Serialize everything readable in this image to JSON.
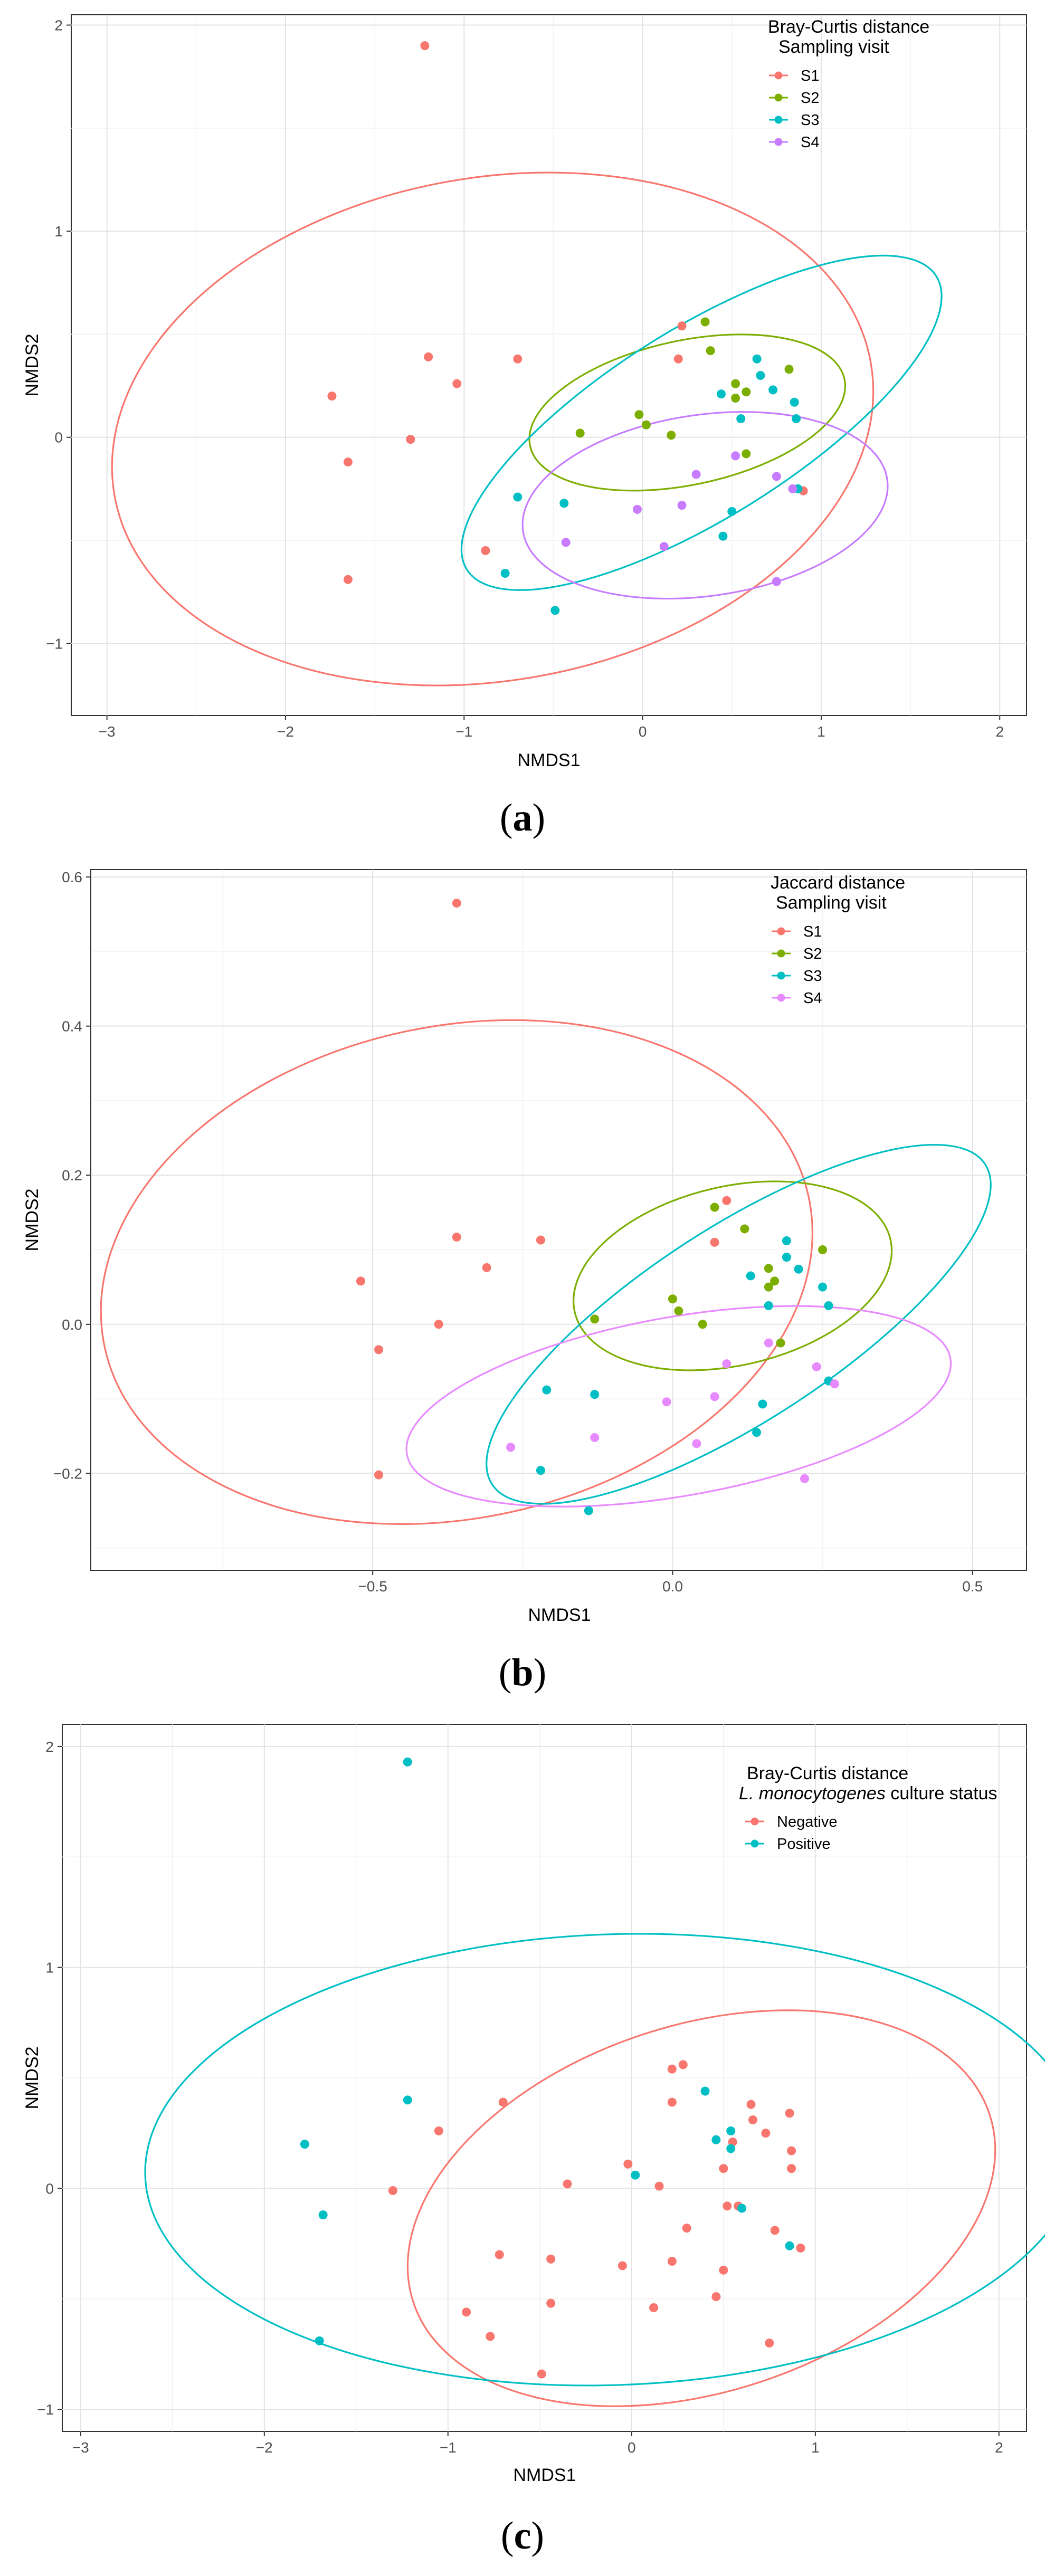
{
  "chart_data": [
    {
      "type": "scatter",
      "panel_caption": "(a)",
      "caption_letter": "a",
      "legend_title_line1": "Bray-Curtis distance",
      "legend_title_line2": "Sampling visit",
      "legend_title_italic": "",
      "legend_title_rest": "",
      "legend_position": "top-right",
      "xlabel": "NMDS1",
      "ylabel": "NMDS2",
      "xlim": [
        -3.2,
        2.15
      ],
      "ylim": [
        -1.35,
        2.05
      ],
      "xticks": [
        -3,
        -2,
        -1,
        0,
        1,
        2
      ],
      "xtick_labels": [
        "−3",
        "−2",
        "−1",
        "0",
        "1",
        "2"
      ],
      "yticks": [
        -1,
        0,
        1,
        2
      ],
      "ytick_labels": [
        "−1",
        "0",
        "1",
        "2"
      ],
      "grid": true,
      "series": [
        {
          "name": "S1",
          "color": "#F8766D",
          "points": [
            [
              -1.22,
              1.9
            ],
            [
              -1.2,
              0.39
            ],
            [
              -0.7,
              0.38
            ],
            [
              -1.04,
              0.26
            ],
            [
              -1.74,
              0.2
            ],
            [
              -1.65,
              -0.12
            ],
            [
              -1.3,
              -0.01
            ],
            [
              -1.65,
              -0.69
            ],
            [
              -0.88,
              -0.55
            ],
            [
              0.22,
              0.54
            ],
            [
              0.2,
              0.38
            ],
            [
              0.9,
              -0.26
            ]
          ],
          "ellipse": {
            "cx": -0.84,
            "cy": 0.04,
            "rx": 2.15,
            "ry": 1.22,
            "angle": 10
          }
        },
        {
          "name": "S2",
          "color": "#7CAE00",
          "points": [
            [
              0.35,
              0.56
            ],
            [
              0.38,
              0.42
            ],
            [
              0.52,
              0.26
            ],
            [
              0.58,
              0.22
            ],
            [
              0.52,
              0.19
            ],
            [
              0.82,
              0.33
            ],
            [
              -0.35,
              0.02
            ],
            [
              -0.02,
              0.11
            ],
            [
              0.02,
              0.06
            ],
            [
              0.16,
              0.01
            ],
            [
              0.58,
              -0.08
            ]
          ],
          "ellipse": {
            "cx": 0.25,
            "cy": 0.12,
            "rx": 0.9,
            "ry": 0.35,
            "angle": 12
          }
        },
        {
          "name": "S3",
          "color": "#00BFC4",
          "points": [
            [
              0.64,
              0.38
            ],
            [
              0.66,
              0.3
            ],
            [
              0.44,
              0.21
            ],
            [
              0.73,
              0.23
            ],
            [
              0.85,
              0.17
            ],
            [
              0.86,
              0.09
            ],
            [
              0.55,
              0.09
            ],
            [
              -0.7,
              -0.29
            ],
            [
              -0.44,
              -0.32
            ],
            [
              -0.77,
              -0.66
            ],
            [
              -0.49,
              -0.84
            ],
            [
              0.5,
              -0.36
            ],
            [
              0.45,
              -0.48
            ],
            [
              0.87,
              -0.25
            ]
          ],
          "ellipse": {
            "cx": 0.33,
            "cy": 0.07,
            "rx": 1.55,
            "ry": 0.46,
            "angle": 32
          }
        },
        {
          "name": "S4",
          "color": "#C77CFF",
          "points": [
            [
              0.52,
              -0.09
            ],
            [
              0.3,
              -0.18
            ],
            [
              0.75,
              -0.19
            ],
            [
              0.22,
              -0.33
            ],
            [
              -0.03,
              -0.35
            ],
            [
              -0.43,
              -0.51
            ],
            [
              0.12,
              -0.53
            ],
            [
              0.75,
              -0.7
            ],
            [
              0.84,
              -0.25
            ]
          ],
          "ellipse": {
            "cx": 0.35,
            "cy": -0.33,
            "rx": 1.03,
            "ry": 0.44,
            "angle": 8
          }
        }
      ]
    },
    {
      "type": "scatter",
      "panel_caption": "(b)",
      "caption_letter": "b",
      "legend_title_line1": "Jaccard distance",
      "legend_title_line2": "Sampling visit",
      "legend_title_italic": "",
      "legend_title_rest": "",
      "legend_position": "top-right",
      "xlabel": "NMDS1",
      "ylabel": "NMDS2",
      "xlim": [
        -0.97,
        0.59
      ],
      "ylim": [
        -0.33,
        0.61
      ],
      "xticks": [
        -0.5,
        0.0,
        0.5
      ],
      "xtick_labels": [
        "−0.5",
        "0.0",
        "0.5"
      ],
      "yticks": [
        -0.2,
        0.0,
        0.2,
        0.4,
        0.6
      ],
      "ytick_labels": [
        "−0.2",
        "0.0",
        "0.2",
        "0.4",
        "0.6"
      ],
      "grid": true,
      "series": [
        {
          "name": "S1",
          "color": "#F8766D",
          "points": [
            [
              -0.36,
              0.565
            ],
            [
              -0.36,
              0.117
            ],
            [
              -0.22,
              0.113
            ],
            [
              -0.31,
              0.076
            ],
            [
              -0.52,
              0.058
            ],
            [
              -0.49,
              -0.034
            ],
            [
              -0.39,
              0.0
            ],
            [
              -0.49,
              -0.202
            ],
            [
              0.09,
              0.166
            ],
            [
              0.07,
              0.11
            ]
          ],
          "ellipse": {
            "cx": -0.36,
            "cy": 0.07,
            "rx": 0.6,
            "ry": 0.33,
            "angle": 12
          }
        },
        {
          "name": "S2",
          "color": "#7CAE00",
          "points": [
            [
              0.07,
              0.157
            ],
            [
              0.12,
              0.128
            ],
            [
              -0.13,
              0.007
            ],
            [
              0.0,
              0.034
            ],
            [
              0.01,
              0.018
            ],
            [
              0.05,
              0.0
            ],
            [
              0.16,
              0.075
            ],
            [
              0.17,
              0.058
            ],
            [
              0.16,
              0.05
            ],
            [
              0.25,
              0.1
            ],
            [
              0.18,
              -0.025
            ]
          ],
          "ellipse": {
            "cx": 0.1,
            "cy": 0.065,
            "rx": 0.27,
            "ry": 0.12,
            "angle": 13
          }
        },
        {
          "name": "S3",
          "color": "#00BFC4",
          "points": [
            [
              0.19,
              0.112
            ],
            [
              0.19,
              0.09
            ],
            [
              0.13,
              0.065
            ],
            [
              0.21,
              0.074
            ],
            [
              0.25,
              0.05
            ],
            [
              0.26,
              0.025
            ],
            [
              0.16,
              0.025
            ],
            [
              -0.21,
              -0.088
            ],
            [
              -0.13,
              -0.094
            ],
            [
              -0.22,
              -0.196
            ],
            [
              -0.14,
              -0.25
            ],
            [
              0.15,
              -0.107
            ],
            [
              0.14,
              -0.145
            ],
            [
              0.26,
              -0.076
            ]
          ],
          "ellipse": {
            "cx": 0.11,
            "cy": 0.0,
            "rx": 0.49,
            "ry": 0.13,
            "angle": 33
          }
        },
        {
          "name": "S4",
          "color": "#E88AFF",
          "points": [
            [
              0.16,
              -0.025
            ],
            [
              0.09,
              -0.053
            ],
            [
              0.24,
              -0.057
            ],
            [
              0.07,
              -0.097
            ],
            [
              -0.01,
              -0.104
            ],
            [
              -0.13,
              -0.152
            ],
            [
              0.04,
              -0.16
            ],
            [
              0.22,
              -0.207
            ],
            [
              0.27,
              -0.08
            ],
            [
              -0.27,
              -0.165
            ]
          ],
          "ellipse": {
            "cx": 0.01,
            "cy": -0.11,
            "rx": 0.46,
            "ry": 0.12,
            "angle": 10
          }
        }
      ]
    },
    {
      "type": "scatter",
      "panel_caption": "(c)",
      "caption_letter": "c",
      "legend_title_line1": "Bray-Curtis distance",
      "legend_title_line2": "",
      "legend_title_italic": "L. monocytogenes",
      "legend_title_rest": " culture status",
      "legend_position": "top-right",
      "xlabel": "NMDS1",
      "ylabel": "NMDS2",
      "xlim": [
        -3.1,
        2.15
      ],
      "ylim": [
        -1.1,
        2.1
      ],
      "xticks": [
        -3,
        -2,
        -1,
        0,
        1,
        2
      ],
      "xtick_labels": [
        "−3",
        "−2",
        "−1",
        "0",
        "1",
        "2"
      ],
      "yticks": [
        -1,
        0,
        1,
        2
      ],
      "ytick_labels": [
        "−1",
        "0",
        "1",
        "2"
      ],
      "grid": true,
      "series": [
        {
          "name": "Negative",
          "color": "#F8766D",
          "points": [
            [
              -1.05,
              0.26
            ],
            [
              -0.7,
              0.39
            ],
            [
              -1.3,
              -0.01
            ],
            [
              -0.35,
              0.02
            ],
            [
              -0.02,
              0.11
            ],
            [
              0.22,
              0.54
            ],
            [
              0.28,
              0.56
            ],
            [
              0.22,
              0.39
            ],
            [
              0.65,
              0.38
            ],
            [
              0.66,
              0.31
            ],
            [
              0.73,
              0.25
            ],
            [
              0.86,
              0.34
            ],
            [
              0.87,
              0.17
            ],
            [
              0.87,
              0.09
            ],
            [
              0.55,
              0.21
            ],
            [
              0.5,
              0.09
            ],
            [
              0.15,
              0.01
            ],
            [
              -0.72,
              -0.3
            ],
            [
              -0.44,
              -0.32
            ],
            [
              0.3,
              -0.18
            ],
            [
              0.22,
              -0.33
            ],
            [
              -0.05,
              -0.35
            ],
            [
              0.5,
              -0.37
            ],
            [
              -0.44,
              -0.52
            ],
            [
              0.12,
              -0.54
            ],
            [
              -0.9,
              -0.56
            ],
            [
              0.46,
              -0.49
            ],
            [
              -0.77,
              -0.67
            ],
            [
              0.75,
              -0.7
            ],
            [
              -0.49,
              -0.84
            ],
            [
              0.92,
              -0.27
            ],
            [
              0.78,
              -0.19
            ],
            [
              0.52,
              -0.08
            ],
            [
              0.58,
              -0.08
            ]
          ],
          "ellipse": {
            "cx": 0.38,
            "cy": -0.09,
            "rx": 1.65,
            "ry": 0.83,
            "angle": 18
          }
        },
        {
          "name": "Positive",
          "color": "#00BFC4",
          "points": [
            [
              -1.22,
              1.93
            ],
            [
              -1.22,
              0.4
            ],
            [
              -1.78,
              0.2
            ],
            [
              -1.68,
              -0.12
            ],
            [
              -1.7,
              -0.69
            ],
            [
              0.02,
              0.06
            ],
            [
              0.4,
              0.44
            ],
            [
              0.46,
              0.22
            ],
            [
              0.54,
              0.18
            ],
            [
              0.54,
              0.26
            ],
            [
              0.6,
              -0.09
            ],
            [
              0.86,
              -0.26
            ]
          ],
          "ellipse": {
            "cx": -0.1,
            "cy": 0.13,
            "rx": 2.55,
            "ry": 1.02,
            "angle": 2
          }
        }
      ]
    }
  ]
}
